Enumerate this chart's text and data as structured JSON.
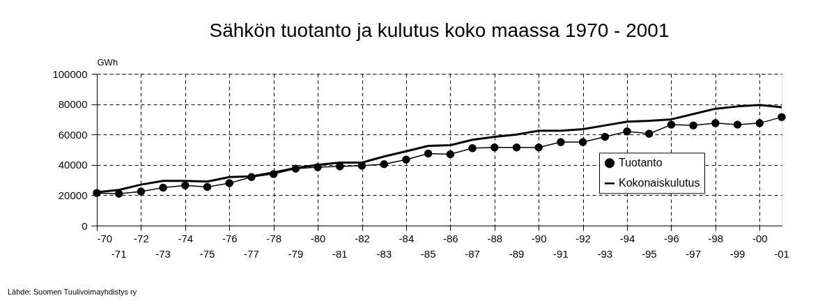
{
  "chart_data": {
    "type": "line",
    "title": "Sähkön tuotanto ja kulutus koko maassa 1970 - 2001",
    "ylabel": "GWh",
    "categories": [
      "-70",
      "-71",
      "-72",
      "-73",
      "-74",
      "-75",
      "-76",
      "-77",
      "-78",
      "-79",
      "-80",
      "-81",
      "-82",
      "-83",
      "-84",
      "-85",
      "-86",
      "-87",
      "-88",
      "-89",
      "-90",
      "-91",
      "-92",
      "-93",
      "-94",
      "-95",
      "-96",
      "-97",
      "-98",
      "-99",
      "-00",
      "-01"
    ],
    "series": [
      {
        "name": "Tuotanto",
        "color": "#000000",
        "marker": "circle",
        "values": [
          21500,
          21000,
          22500,
          25000,
          26500,
          25500,
          28000,
          32000,
          34000,
          37500,
          38500,
          39000,
          39500,
          40500,
          43500,
          47500,
          47000,
          51000,
          51500,
          51500,
          51500,
          55000,
          55000,
          58500,
          62000,
          60500,
          66500,
          66000,
          67500,
          66500,
          67500,
          71500
        ]
      },
      {
        "name": "Kokonaiskulutus",
        "color": "#000000",
        "marker": "none",
        "values": [
          22000,
          23500,
          27000,
          29500,
          29500,
          29000,
          32000,
          32500,
          35000,
          38000,
          40000,
          41500,
          41500,
          45500,
          49000,
          52500,
          53000,
          56500,
          58500,
          60000,
          62500,
          62500,
          63500,
          66000,
          68500,
          69000,
          70000,
          73500,
          77000,
          78500,
          79500,
          78000
        ]
      }
    ],
    "ylim": [
      0,
      100000
    ],
    "yticks": [
      0,
      20000,
      40000,
      60000,
      80000,
      100000
    ],
    "grid": true,
    "legend": "right",
    "line_style": "solid",
    "annotations": [
      "Lähde: Suomen Tuulivoimayhdistys ry"
    ]
  }
}
